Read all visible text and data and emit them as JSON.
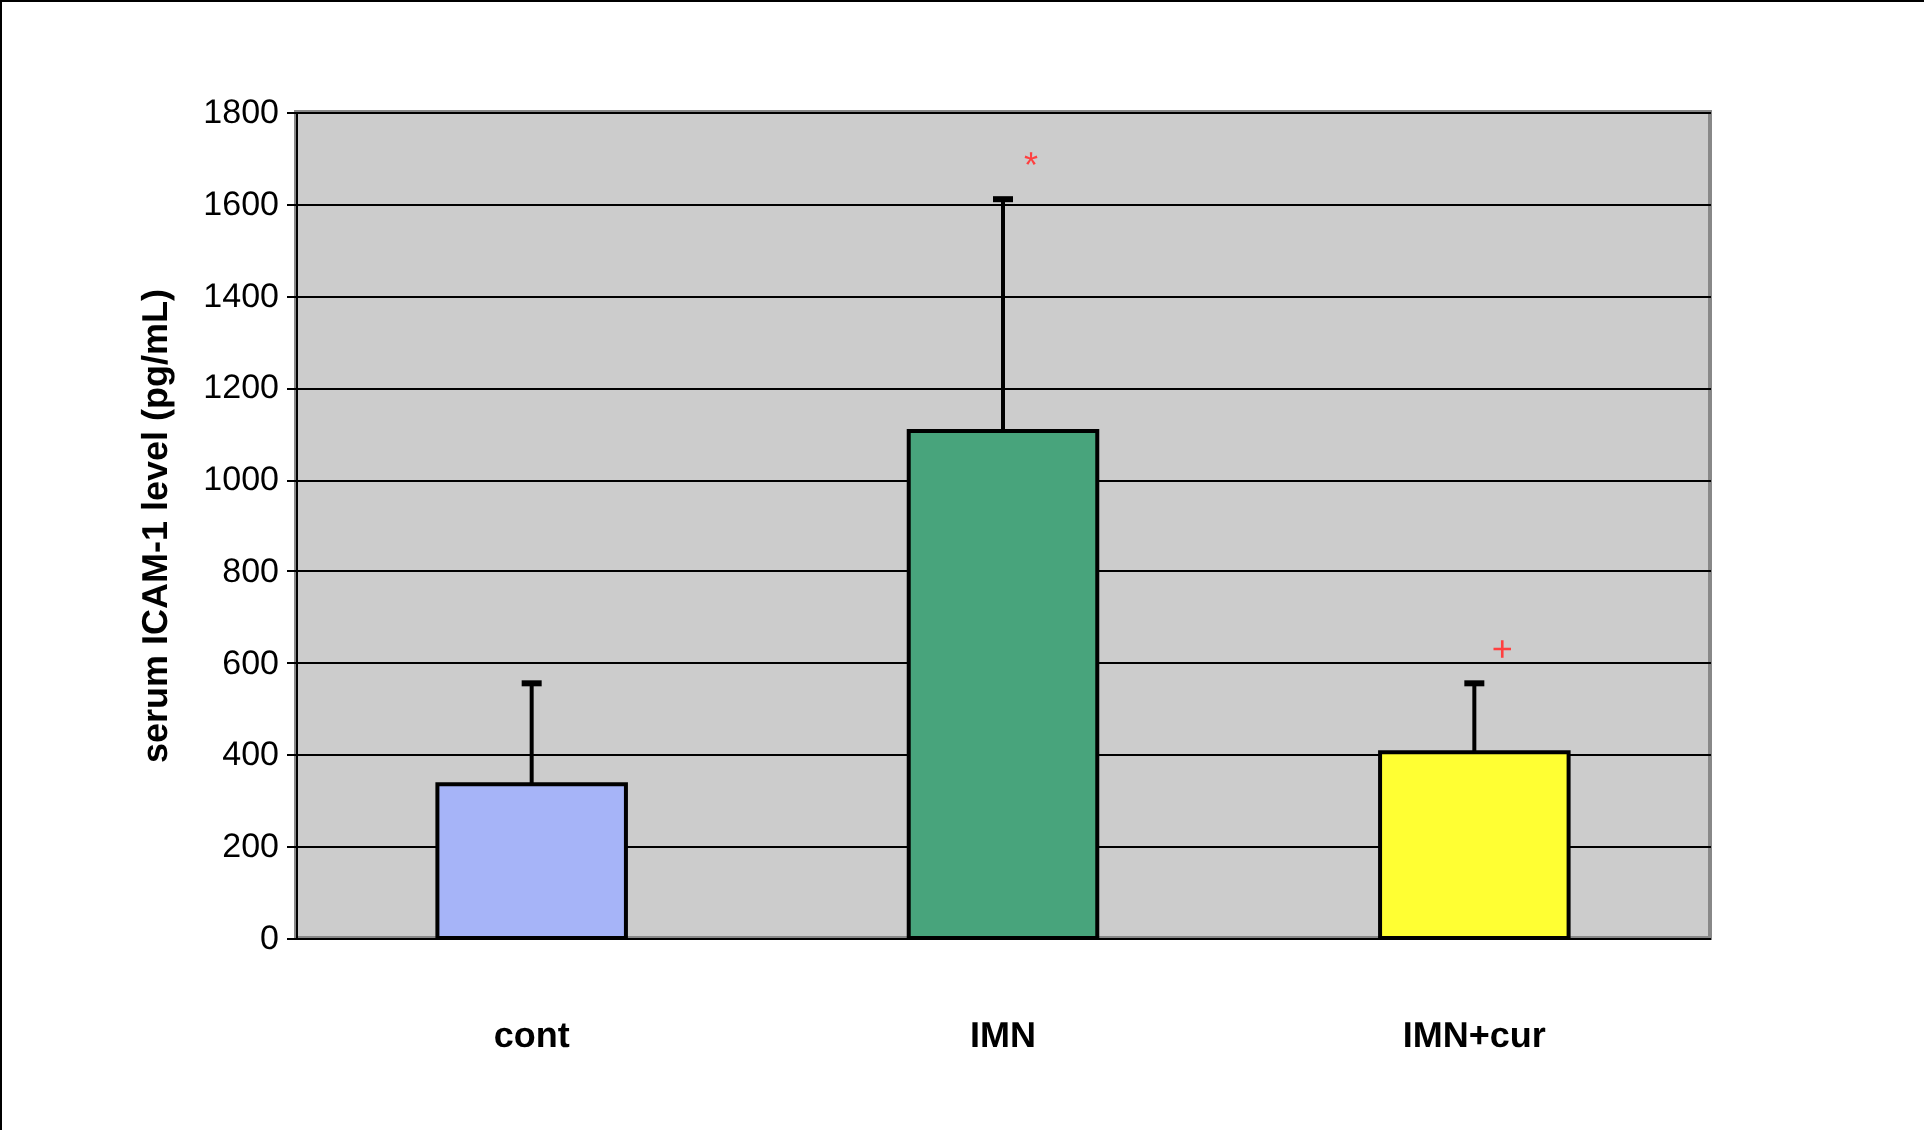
{
  "chart_data": {
    "type": "bar",
    "ylabel": "serum ICAM-1 level (pg/mL)",
    "categories": [
      "cont",
      "IMN",
      "IMN+cur"
    ],
    "values": [
      335,
      1105,
      405
    ],
    "colors": [
      "#a6b4f8",
      "#48a47c",
      "#ffff33"
    ],
    "errors": [
      [
        335,
        555
      ],
      [
        1105,
        1610
      ],
      [
        405,
        555
      ]
    ],
    "ylim": [
      0,
      1800
    ],
    "yticks": [
      0,
      200,
      400,
      600,
      800,
      1000,
      1200,
      1400,
      1600,
      1800
    ],
    "grid": "y",
    "annotations": [
      "*",
      "+"
    ]
  }
}
